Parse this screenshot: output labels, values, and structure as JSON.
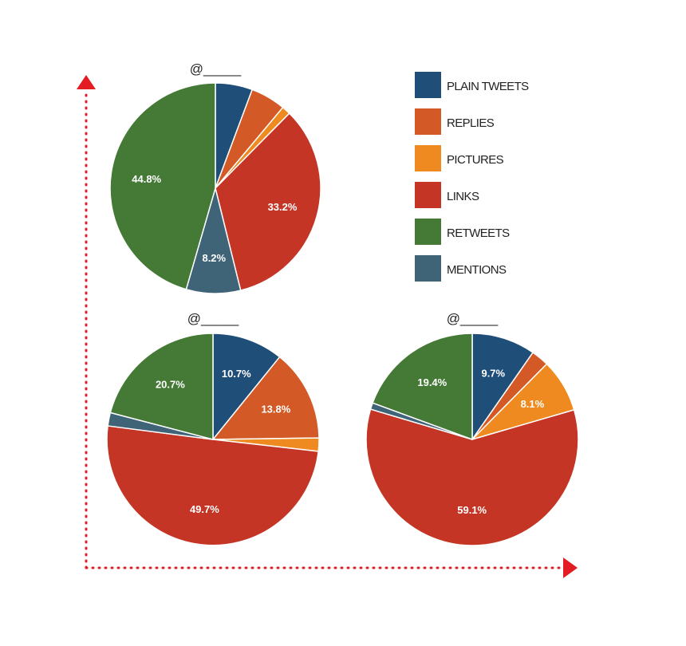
{
  "chart_data": [
    {
      "type": "pie",
      "title": "@_____",
      "slices": [
        {
          "name": "PLAIN TWEETS",
          "value": 5.6,
          "label": ""
        },
        {
          "name": "REPLIES",
          "value": 5.3,
          "label": ""
        },
        {
          "name": "PICTURES",
          "value": 1.3,
          "label": ""
        },
        {
          "name": "LINKS",
          "value": 33.2,
          "label": "33.2%"
        },
        {
          "name": "MENTIONS",
          "value": 8.2,
          "label": "8.2%"
        },
        {
          "name": "RETWEETS",
          "value": 44.8,
          "label": "44.8%"
        }
      ]
    },
    {
      "type": "pie",
      "title": "@_____",
      "slices": [
        {
          "name": "PLAIN TWEETS",
          "value": 10.7,
          "label": "10.7%"
        },
        {
          "name": "REPLIES",
          "value": 13.8,
          "label": "13.8%"
        },
        {
          "name": "PICTURES",
          "value": 2.0,
          "label": ""
        },
        {
          "name": "LINKS",
          "value": 49.7,
          "label": "49.7%"
        },
        {
          "name": "MENTIONS",
          "value": 2.0,
          "label": ""
        },
        {
          "name": "RETWEETS",
          "value": 20.7,
          "label": "20.7%"
        }
      ]
    },
    {
      "type": "pie",
      "title": "@_____",
      "slices": [
        {
          "name": "PLAIN TWEETS",
          "value": 9.7,
          "label": "9.7%"
        },
        {
          "name": "REPLIES",
          "value": 2.7,
          "label": ""
        },
        {
          "name": "PICTURES",
          "value": 8.1,
          "label": "8.1%"
        },
        {
          "name": "LINKS",
          "value": 59.1,
          "label": "59.1%"
        },
        {
          "name": "MENTIONS",
          "value": 1.0,
          "label": ""
        },
        {
          "name": "RETWEETS",
          "value": 19.4,
          "label": "19.4%"
        }
      ]
    }
  ],
  "legend": {
    "placement": "top-right",
    "items": [
      {
        "label": "PLAIN TWEETS",
        "color": "#1f4e79"
      },
      {
        "label": "REPLIES",
        "color": "#d35a27"
      },
      {
        "label": "PICTURES",
        "color": "#ee8a1f"
      },
      {
        "label": "LINKS",
        "color": "#c43526"
      },
      {
        "label": "RETWEETS",
        "color": "#447a35"
      },
      {
        "label": "MENTIONS",
        "color": "#3f6478"
      }
    ]
  },
  "axes_arrow_color": "#e31b23"
}
